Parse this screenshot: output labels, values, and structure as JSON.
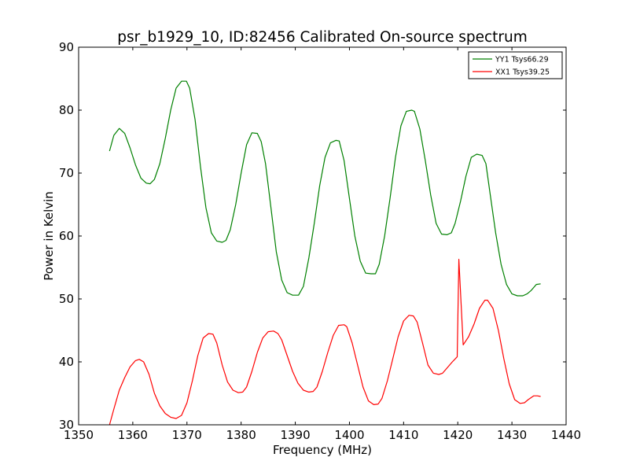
{
  "chart_data": {
    "type": "line",
    "title": "psr_b1929_10, ID:82456 Calibrated On-source spectrum",
    "xlabel": "Frequency (MHz)",
    "ylabel": "Power in Kelvin",
    "xlim": [
      1350,
      1440
    ],
    "ylim": [
      30,
      90
    ],
    "xticks": [
      1350,
      1360,
      1370,
      1380,
      1390,
      1400,
      1410,
      1420,
      1430,
      1440
    ],
    "yticks": [
      30,
      40,
      50,
      60,
      70,
      80,
      90
    ],
    "grid": false,
    "legend_position": "top-right",
    "series": [
      {
        "name": "YY1 Tsys66.29",
        "color": "#008000",
        "x": [
          1355.7,
          1356.5,
          1357.5,
          1358.5,
          1359.5,
          1360.5,
          1361.5,
          1362.5,
          1363.2,
          1364.0,
          1365.0,
          1366.0,
          1367.0,
          1368.0,
          1369.0,
          1369.9,
          1370.5,
          1371.5,
          1372.5,
          1373.5,
          1374.5,
          1375.5,
          1376.5,
          1377.2,
          1378.0,
          1379.0,
          1380.0,
          1381.0,
          1382.0,
          1383.0,
          1383.7,
          1384.5,
          1385.5,
          1386.5,
          1387.5,
          1388.5,
          1389.5,
          1390.6,
          1391.5,
          1392.5,
          1393.5,
          1394.5,
          1395.5,
          1396.5,
          1397.5,
          1398.1,
          1399.0,
          1400.0,
          1401.0,
          1402.0,
          1403.0,
          1404.0,
          1404.8,
          1405.5,
          1406.5,
          1407.5,
          1408.5,
          1409.5,
          1410.5,
          1411.5,
          1412.0,
          1413.0,
          1414.0,
          1415.0,
          1416.0,
          1417.0,
          1418.0,
          1418.8,
          1419.5,
          1420.5,
          1421.5,
          1422.5,
          1423.5,
          1424.5,
          1425.2,
          1426.0,
          1427.0,
          1428.0,
          1429.0,
          1430.0,
          1431.0,
          1432.0,
          1432.8,
          1433.5,
          1434.5,
          1435.3
        ],
        "values": [
          73.5,
          76.0,
          77.1,
          76.3,
          74.0,
          71.3,
          69.2,
          68.4,
          68.3,
          69.0,
          71.5,
          75.5,
          80.0,
          83.5,
          84.6,
          84.6,
          83.5,
          78.5,
          71.0,
          64.5,
          60.5,
          59.2,
          59.0,
          59.3,
          61.0,
          65.0,
          70.0,
          74.5,
          76.4,
          76.3,
          75.0,
          71.5,
          64.5,
          57.5,
          53.0,
          51.0,
          50.6,
          50.6,
          52.0,
          56.5,
          62.0,
          68.0,
          72.5,
          74.8,
          75.2,
          75.1,
          72.0,
          66.0,
          60.0,
          56.0,
          54.1,
          54.0,
          54.0,
          55.5,
          60.0,
          66.0,
          72.5,
          77.5,
          79.8,
          80.0,
          79.8,
          77.0,
          72.0,
          66.5,
          62.0,
          60.3,
          60.2,
          60.5,
          62.0,
          65.5,
          69.5,
          72.5,
          73.0,
          72.8,
          71.5,
          66.5,
          60.5,
          55.5,
          52.3,
          50.8,
          50.5,
          50.5,
          50.8,
          51.3,
          52.3,
          52.4
        ]
      },
      {
        "name": "XX1 Tsys39.25",
        "color": "#ff0000",
        "x": [
          1355.7,
          1356.5,
          1357.5,
          1358.5,
          1359.5,
          1360.5,
          1361.2,
          1362.0,
          1363.0,
          1364.0,
          1365.0,
          1366.0,
          1367.0,
          1368.0,
          1369.0,
          1370.0,
          1371.0,
          1372.0,
          1373.0,
          1374.0,
          1374.8,
          1375.5,
          1376.5,
          1377.5,
          1378.5,
          1379.5,
          1380.3,
          1381.0,
          1382.0,
          1383.0,
          1384.0,
          1385.0,
          1386.0,
          1386.8,
          1387.5,
          1388.5,
          1389.5,
          1390.5,
          1391.5,
          1392.5,
          1393.3,
          1394.0,
          1395.0,
          1396.0,
          1397.0,
          1398.0,
          1399.0,
          1399.5,
          1400.5,
          1401.5,
          1402.5,
          1403.5,
          1404.5,
          1405.3,
          1406.0,
          1407.0,
          1408.0,
          1409.0,
          1410.0,
          1411.0,
          1411.8,
          1412.5,
          1413.5,
          1414.5,
          1415.5,
          1416.5,
          1417.2,
          1418.0,
          1419.0,
          1419.9,
          1420.2,
          1421.0,
          1422.0,
          1423.0,
          1424.0,
          1425.0,
          1425.5,
          1426.5,
          1427.5,
          1428.5,
          1429.5,
          1430.5,
          1431.5,
          1432.3,
          1433.0,
          1434.0,
          1434.7,
          1435.3
        ],
        "values": [
          30.0,
          32.5,
          35.5,
          37.5,
          39.2,
          40.2,
          40.4,
          40.0,
          38.0,
          35.0,
          33.0,
          31.8,
          31.2,
          31.0,
          31.5,
          33.5,
          37.0,
          41.0,
          43.8,
          44.5,
          44.4,
          43.0,
          39.5,
          36.8,
          35.5,
          35.1,
          35.2,
          36.0,
          38.5,
          41.5,
          43.8,
          44.8,
          44.9,
          44.5,
          43.5,
          41.0,
          38.5,
          36.6,
          35.5,
          35.2,
          35.3,
          36.0,
          38.5,
          41.5,
          44.2,
          45.8,
          45.9,
          45.6,
          43.0,
          39.5,
          36.0,
          33.8,
          33.2,
          33.3,
          34.2,
          37.0,
          40.5,
          44.0,
          46.5,
          47.4,
          47.3,
          46.3,
          43.0,
          39.5,
          38.2,
          38.0,
          38.2,
          39.0,
          40.0,
          40.8,
          56.3,
          42.7,
          44.0,
          46.0,
          48.5,
          49.8,
          49.8,
          48.5,
          45.0,
          40.5,
          36.5,
          34.0,
          33.4,
          33.5,
          34.0,
          34.6,
          34.6,
          34.5
        ]
      }
    ]
  }
}
